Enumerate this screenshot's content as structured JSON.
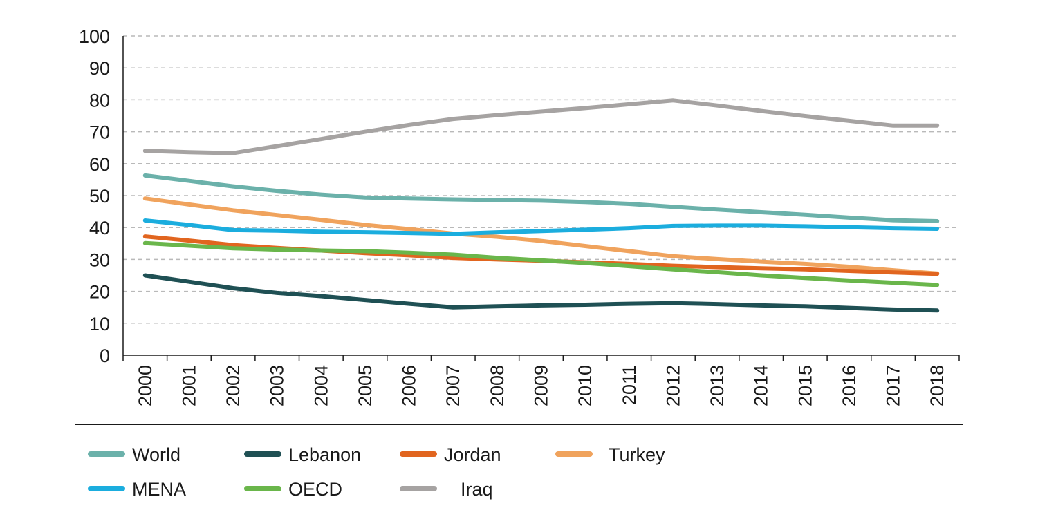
{
  "chart_data": {
    "type": "line",
    "title": "",
    "xlabel": "",
    "ylabel": "",
    "ylim": [
      0,
      100
    ],
    "yticks": [
      "0",
      "10",
      "20",
      "30",
      "40",
      "50",
      "60",
      "70",
      "80",
      "90",
      "100"
    ],
    "x": [
      "2000",
      "2001",
      "2002",
      "2003",
      "2004",
      "2005",
      "2006",
      "2007",
      "2008",
      "2009",
      "2010",
      "2011",
      "2012",
      "2013",
      "2014",
      "2015",
      "2016",
      "2017",
      "2018"
    ],
    "grid": "horizontal dashed",
    "legend_position": "bottom",
    "series": [
      {
        "name": "World",
        "color": "#6bb1aa",
        "values": [
          56.3,
          54.6,
          52.9,
          51.5,
          50.3,
          49.4,
          49.1,
          48.8,
          48.6,
          48.4,
          48.0,
          47.4,
          46.5,
          45.6,
          44.8,
          44.0,
          43.1,
          42.3,
          42.0
        ]
      },
      {
        "name": "Lebanon",
        "color": "#1f5054",
        "values": [
          25.0,
          23.0,
          21.0,
          19.5,
          18.5,
          17.3,
          16.1,
          15.0,
          15.3,
          15.6,
          15.8,
          16.1,
          16.3,
          16.0,
          15.6,
          15.3,
          14.8,
          14.3,
          14.0
        ]
      },
      {
        "name": "Jordan",
        "color": "#e1651f",
        "values": [
          37.2,
          35.9,
          34.5,
          33.6,
          32.8,
          32.0,
          31.3,
          30.5,
          30.0,
          29.6,
          29.1,
          28.6,
          28.0,
          27.6,
          27.2,
          26.9,
          26.4,
          25.9,
          25.5
        ]
      },
      {
        "name": "Turkey",
        "color": "#f0a35d",
        "values": [
          49.1,
          47.2,
          45.4,
          43.9,
          42.4,
          40.8,
          39.5,
          38.1,
          37.1,
          35.8,
          34.2,
          32.6,
          31.0,
          30.1,
          29.3,
          28.6,
          27.7,
          26.6,
          25.6
        ]
      },
      {
        "name": "MENA",
        "color": "#1badde",
        "values": [
          42.2,
          40.8,
          39.2,
          39.0,
          38.7,
          38.5,
          38.3,
          38.0,
          38.5,
          38.9,
          39.3,
          39.8,
          40.5,
          40.6,
          40.6,
          40.4,
          40.1,
          39.8,
          39.6
        ]
      },
      {
        "name": "OECD",
        "color": "#6ab64b",
        "values": [
          35.1,
          34.3,
          33.5,
          33.1,
          32.8,
          32.6,
          32.1,
          31.5,
          30.5,
          29.7,
          28.9,
          27.9,
          26.9,
          26.0,
          25.0,
          24.2,
          23.4,
          22.7,
          22.0
        ]
      },
      {
        "name": "Iraq",
        "color": "#a6a3a2",
        "values": [
          64.0,
          63.6,
          63.3,
          65.5,
          67.7,
          70.0,
          72.1,
          74.0,
          75.2,
          76.3,
          77.4,
          78.6,
          79.8,
          78.2,
          76.5,
          74.9,
          73.4,
          71.9,
          71.9
        ]
      }
    ]
  },
  "legend": {
    "row1": [
      {
        "label": "World",
        "color": "#6bb1aa"
      },
      {
        "label": "Lebanon",
        "color": "#1f5054"
      },
      {
        "label": "Jordan",
        "color": "#e1651f"
      },
      {
        "label": "Turkey",
        "color": "#f0a35d"
      }
    ],
    "row2": [
      {
        "label": "MENA",
        "color": "#1badde"
      },
      {
        "label": "OECD",
        "color": "#6ab64b"
      },
      {
        "label": "Iraq",
        "color": "#a6a3a2"
      }
    ]
  }
}
